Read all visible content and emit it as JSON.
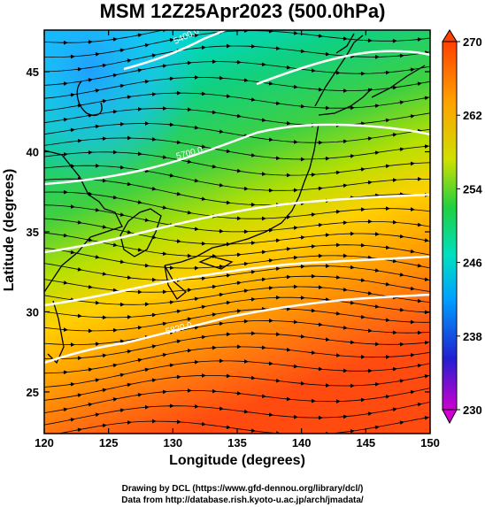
{
  "title": "MSM 12Z25Apr2023 (500.0hPa)",
  "x_axis": {
    "label": "Longitude (degrees)",
    "range": [
      120,
      150
    ],
    "ticks": [
      "120",
      "125",
      "130",
      "135",
      "140",
      "145",
      "150"
    ]
  },
  "y_axis": {
    "label": "Latitude  (degrees)",
    "range": [
      22.4,
      47.6
    ],
    "ticks": [
      "25",
      "30",
      "35",
      "40",
      "45"
    ]
  },
  "colorbar": {
    "range": [
      230,
      270
    ],
    "ticks": [
      "230",
      "238",
      "246",
      "254",
      "262",
      "270"
    ],
    "colors": [
      "#d000d0",
      "#2020d0",
      "#00a0ff",
      "#00e0c0",
      "#20d040",
      "#d0e000",
      "#ffa000",
      "#ff4000"
    ]
  },
  "contour_labels": [
    "5400.0",
    "5700.0",
    "5820.0"
  ],
  "credits": {
    "line1": "Drawing by DCL (https://www.gfd-dennou.org/library/dcl/)",
    "line2": "Data from http://database.rish.kyoto-u.ac.jp/arch/jmadata/"
  }
}
